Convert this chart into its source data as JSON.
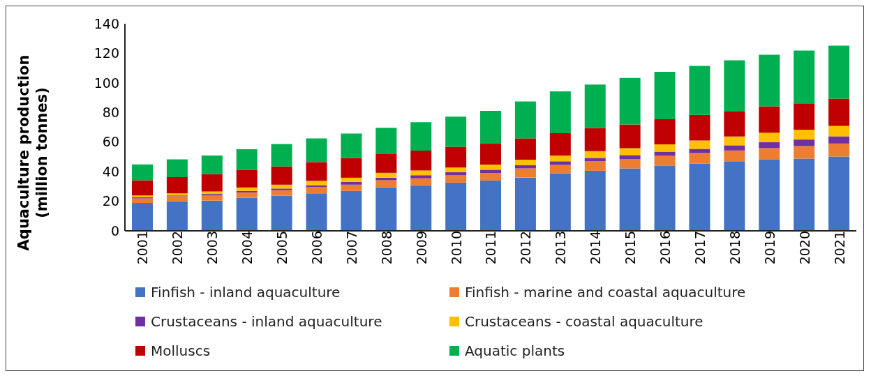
{
  "chart_data": {
    "type": "bar",
    "stacked": true,
    "ylabel": "Aquaculture production (million tonnes)",
    "categories": [
      "2001",
      "2002",
      "2003",
      "2004",
      "2005",
      "2006",
      "2007",
      "2008",
      "2009",
      "2010",
      "2011",
      "2012",
      "2013",
      "2014",
      "2015",
      "2016",
      "2017",
      "2018",
      "2019",
      "2020",
      "2021"
    ],
    "series": [
      {
        "name": "Finfish - inland aquaculture",
        "color": "#4472c4",
        "values": [
          18.8,
          19.9,
          20.4,
          22.3,
          23.7,
          25.3,
          27.0,
          29.5,
          30.8,
          32.6,
          34.0,
          36.0,
          38.9,
          40.6,
          42.2,
          43.9,
          45.5,
          47.0,
          48.1,
          48.8,
          50.2
        ]
      },
      {
        "name": "Finfish - marine and coastal aquaculture",
        "color": "#ed7d31",
        "values": [
          3.1,
          3.5,
          3.5,
          3.7,
          3.8,
          4.3,
          4.2,
          4.7,
          4.7,
          4.9,
          5.0,
          6.2,
          5.7,
          6.4,
          6.2,
          6.8,
          7.1,
          7.3,
          7.8,
          8.5,
          8.8
        ]
      },
      {
        "name": "Crustaceans - inland aquaculture",
        "color": "#7030a0",
        "values": [
          0.8,
          0.5,
          1.0,
          1.0,
          1.1,
          1.2,
          1.9,
          1.7,
          2.1,
          2.2,
          2.3,
          2.2,
          2.4,
          2.3,
          2.8,
          2.8,
          2.8,
          3.5,
          4.0,
          4.4,
          4.9
        ]
      },
      {
        "name": "Crustaceans - coastal aquaculture",
        "color": "#ffc000",
        "values": [
          1.2,
          1.4,
          1.7,
          2.3,
          2.6,
          3.0,
          2.8,
          3.3,
          3.2,
          3.1,
          3.5,
          3.7,
          3.9,
          4.5,
          4.7,
          5.0,
          5.6,
          5.9,
          6.5,
          6.7,
          7.0
        ]
      },
      {
        "name": "Molluscs",
        "color": "#c00000",
        "values": [
          10.3,
          11.0,
          11.7,
          12.0,
          12.3,
          12.7,
          13.4,
          12.7,
          13.4,
          14.0,
          14.1,
          14.4,
          15.1,
          15.7,
          16.0,
          16.9,
          17.4,
          17.3,
          17.7,
          17.8,
          18.4
        ]
      },
      {
        "name": "Aquatic plants",
        "color": "#00b050",
        "values": [
          10.7,
          12.0,
          12.6,
          13.9,
          15.2,
          15.9,
          16.4,
          17.8,
          19.2,
          20.4,
          22.2,
          25.0,
          28.3,
          29.4,
          31.4,
          32.1,
          33.1,
          34.2,
          34.9,
          35.7,
          35.8
        ]
      }
    ],
    "ylim": [
      0,
      140
    ],
    "yticks": [
      0,
      20,
      40,
      60,
      80,
      100,
      120,
      140
    ],
    "grid": false,
    "legend": "bottom"
  }
}
